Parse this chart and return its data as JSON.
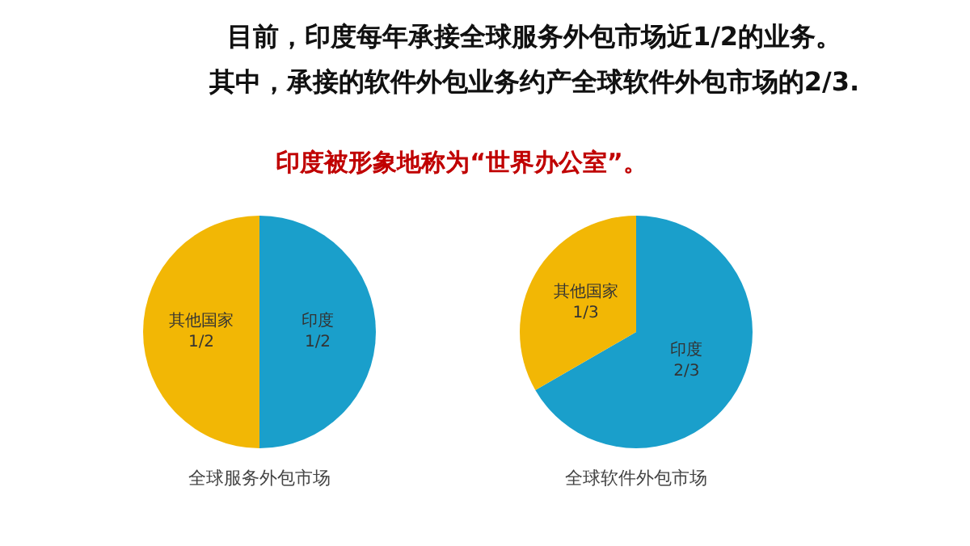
{
  "chart_data": [
    {
      "type": "pie",
      "title": "全球服务外包市场",
      "categories": [
        "印度",
        "其他国家"
      ],
      "values": [
        0.5,
        0.5
      ],
      "value_labels": [
        "1/2",
        "1/2"
      ],
      "colors": [
        "#1a9fcb",
        "#f2b705"
      ],
      "annotations": [
        "目前，印度每年承接全球服务外包市场近1/2的业务。",
        "其中，承接的软件外包业务约产全球软件外包市场的2/3.",
        "印度被形象地称为“世界办公室”。"
      ]
    },
    {
      "type": "pie",
      "title": "全球软件外包市场",
      "categories": [
        "印度",
        "其他国家"
      ],
      "values": [
        0.6667,
        0.3333
      ],
      "value_labels": [
        "2/3",
        "1/3"
      ],
      "colors": [
        "#1a9fcb",
        "#f2b705"
      ]
    }
  ]
}
